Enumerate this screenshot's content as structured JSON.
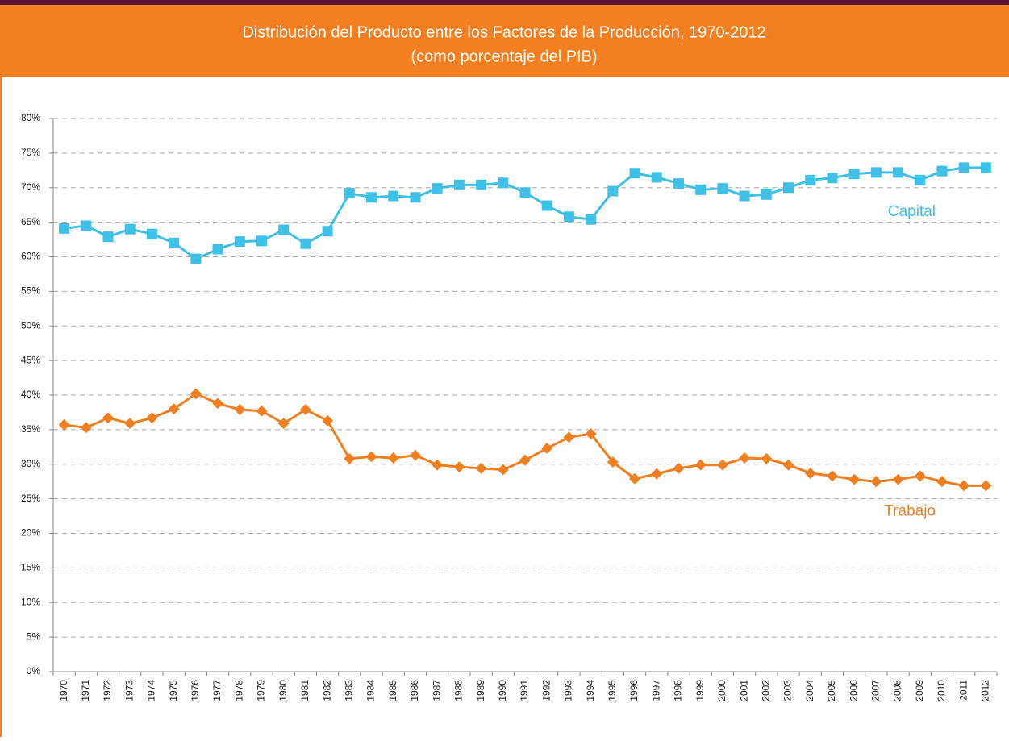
{
  "chart_data": {
    "type": "line",
    "title": "Distribución del Producto entre los Factores de la Producción, 1970-2012",
    "subtitle": "(como porcentaje del PIB)",
    "categories": [
      "1970",
      "1971",
      "1972",
      "1973",
      "1974",
      "1975",
      "1976",
      "1977",
      "1978",
      "1979",
      "1980",
      "1981",
      "1982",
      "1983",
      "1984",
      "1985",
      "1986",
      "1987",
      "1988",
      "1989",
      "1990",
      "1991",
      "1992",
      "1993",
      "1994",
      "1995",
      "1996",
      "1997",
      "1998",
      "1999",
      "2000",
      "2001",
      "2002",
      "2003",
      "2004",
      "2005",
      "2006",
      "2007",
      "2008",
      "2009",
      "2010",
      "2011",
      "2012"
    ],
    "series": [
      {
        "name": "Capital",
        "color": "#3fc0e6",
        "marker": "square",
        "values": [
          64.1,
          64.5,
          62.9,
          64.0,
          63.3,
          62.0,
          59.7,
          61.1,
          62.2,
          62.3,
          63.9,
          61.9,
          63.7,
          69.2,
          68.6,
          68.8,
          68.6,
          69.9,
          70.4,
          70.4,
          70.7,
          69.3,
          67.4,
          65.8,
          65.4,
          69.5,
          72.1,
          71.5,
          70.6,
          69.7,
          69.9,
          68.8,
          69.0,
          70.0,
          71.1,
          71.4,
          72.0,
          72.2,
          72.2,
          71.1,
          72.4,
          72.9,
          72.9
        ]
      },
      {
        "name": "Trabajo",
        "color": "#f07f22",
        "marker": "diamond",
        "values": [
          35.7,
          35.3,
          36.7,
          35.9,
          36.7,
          38.0,
          40.2,
          38.8,
          37.9,
          37.7,
          35.9,
          37.9,
          36.3,
          30.8,
          31.1,
          30.9,
          31.3,
          29.9,
          29.6,
          29.4,
          29.2,
          30.6,
          32.3,
          33.9,
          34.4,
          30.3,
          27.9,
          28.6,
          29.4,
          29.9,
          29.9,
          30.9,
          30.8,
          29.9,
          28.7,
          28.3,
          27.8,
          27.5,
          27.8,
          28.3,
          27.5,
          26.9,
          26.9
        ]
      }
    ],
    "ylim": [
      0,
      80
    ],
    "yticks": [
      {
        "value": 0,
        "label": "0%"
      },
      {
        "value": 5,
        "label": "5%"
      },
      {
        "value": 10,
        "label": "10%"
      },
      {
        "value": 15,
        "label": "15%"
      },
      {
        "value": 20,
        "label": "20%"
      },
      {
        "value": 25,
        "label": "25%"
      },
      {
        "value": 30,
        "label": "30%"
      },
      {
        "value": 35,
        "label": "35%"
      },
      {
        "value": 40,
        "label": "40%"
      },
      {
        "value": 45,
        "label": "45%"
      },
      {
        "value": 50,
        "label": "50%"
      },
      {
        "value": 55,
        "label": "55%"
      },
      {
        "value": 60,
        "label": "60%"
      },
      {
        "value": 65,
        "label": "65%"
      },
      {
        "value": 70,
        "label": "70%"
      },
      {
        "value": 75,
        "label": "75%"
      },
      {
        "value": 80,
        "label": "80%"
      }
    ],
    "grid": true
  }
}
